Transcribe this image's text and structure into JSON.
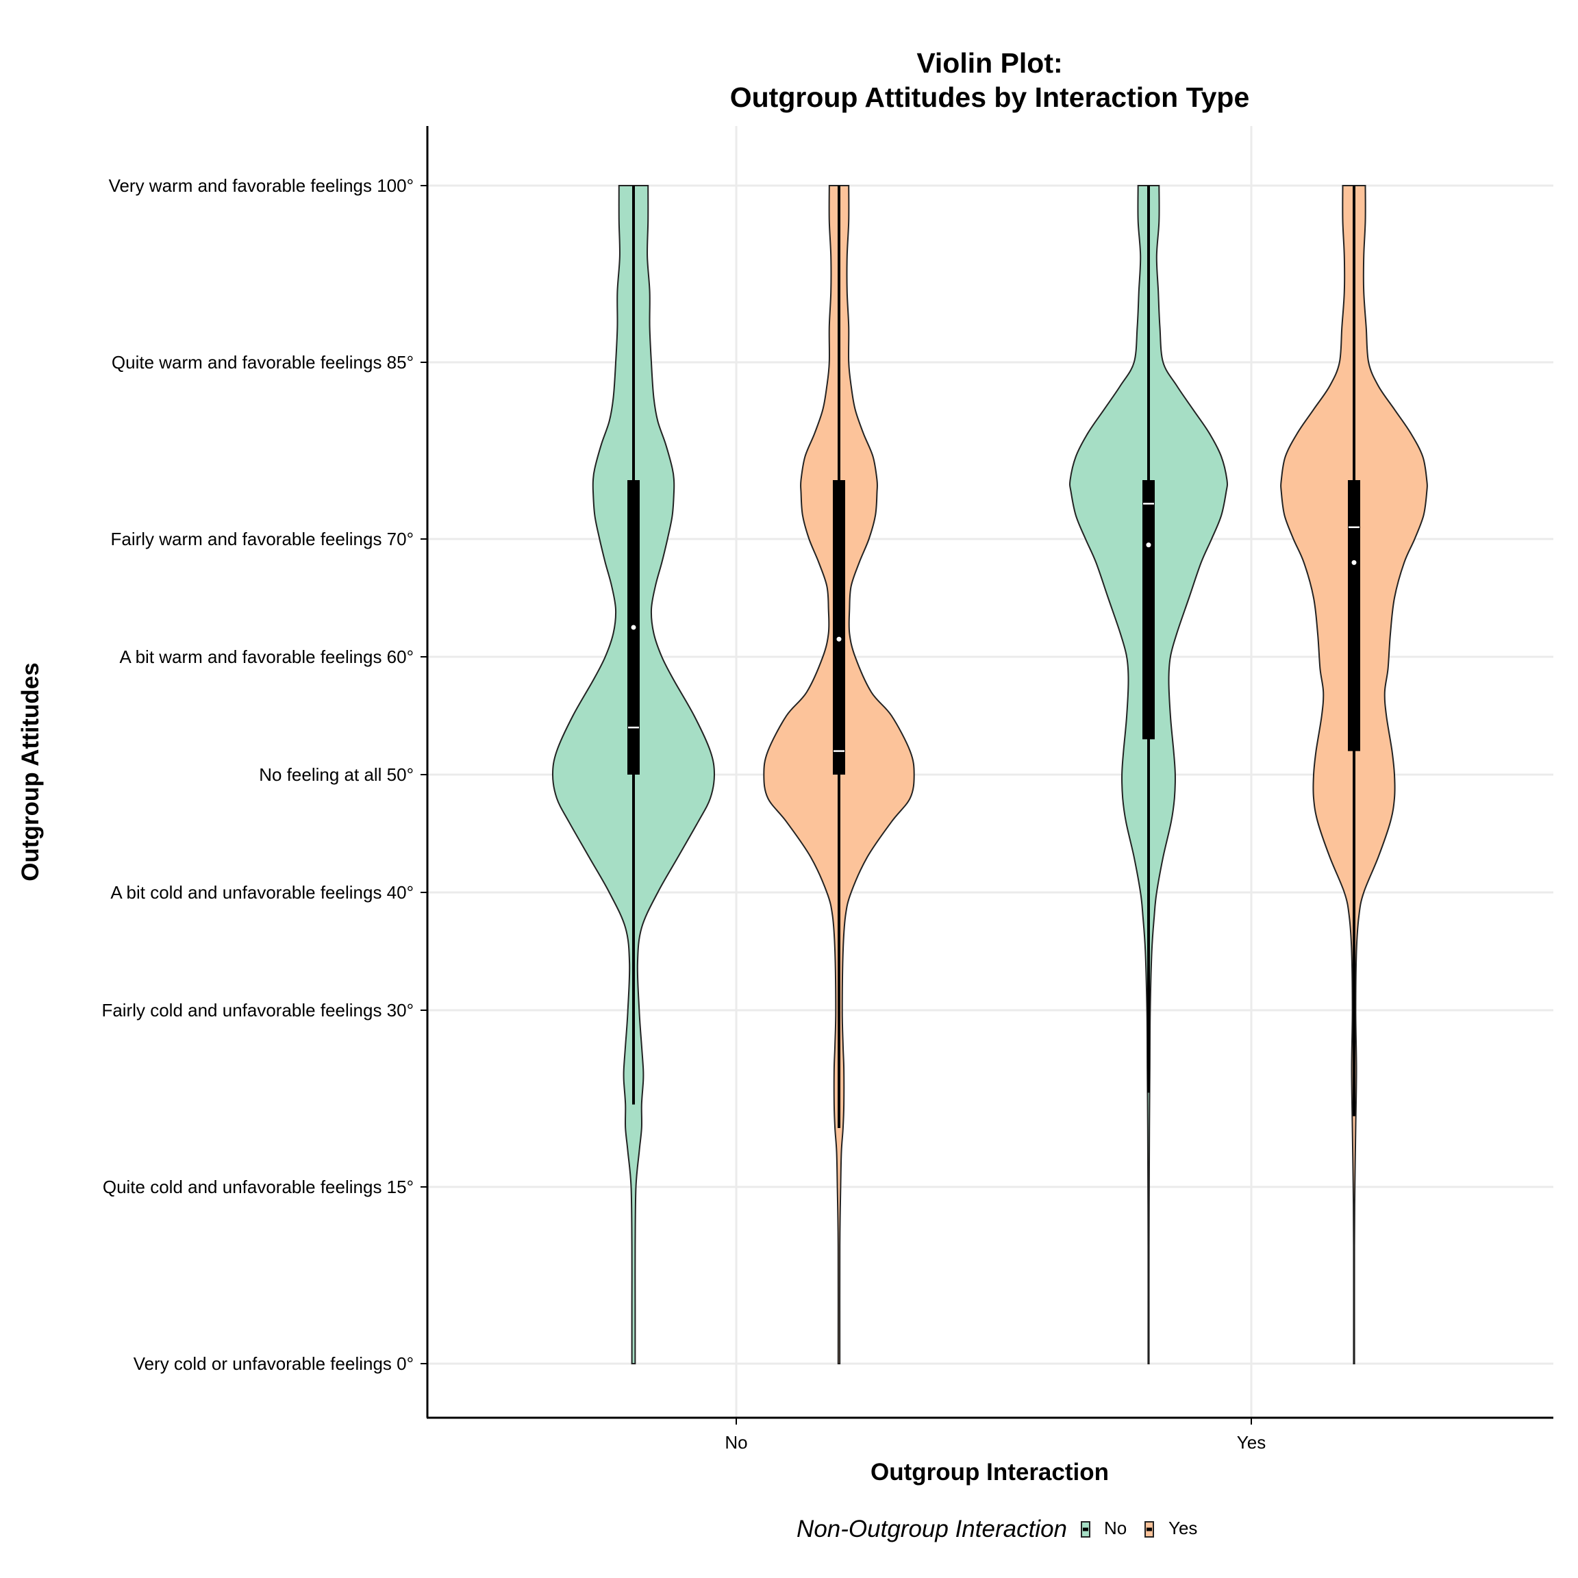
{
  "chart_data": {
    "type": "violin",
    "title": "Violin Plot:",
    "subtitle": "Outgroup Attitudes by Interaction Type",
    "xlabel": "Outgroup Interaction",
    "ylabel": "Outgroup Attitudes",
    "categories": [
      "No",
      "Yes"
    ],
    "ylim": [
      -5,
      105
    ],
    "grid": true,
    "y_ticks": [
      {
        "value": 0,
        "label": "Very cold or unfavorable feelings 0°"
      },
      {
        "value": 15,
        "label": "Quite cold and unfavorable feelings 15°"
      },
      {
        "value": 30,
        "label": "Fairly cold and unfavorable feelings 30°"
      },
      {
        "value": 40,
        "label": "A bit cold and unfavorable feelings 40°"
      },
      {
        "value": 50,
        "label": "No feeling at all 50°"
      },
      {
        "value": 60,
        "label": "A bit warm and favorable feelings 60°"
      },
      {
        "value": 70,
        "label": "Fairly warm and favorable feelings 70°"
      },
      {
        "value": 85,
        "label": "Quite warm and favorable feelings 85°"
      },
      {
        "value": 100,
        "label": "Very warm and favorable feelings 100°"
      }
    ],
    "legend": {
      "title": "Non-Outgroup Interaction",
      "position": "bottom"
    },
    "series": [
      {
        "name": "No",
        "color": "#a6dec5",
        "groups": [
          {
            "category": "No",
            "box": {
              "q1": 50,
              "median": 54,
              "q3": 75,
              "mean": 62.5,
              "whisker_low": 22,
              "whisker_high": 100
            },
            "density": [
              [
                0,
                0.02
              ],
              [
                5,
                0.02
              ],
              [
                10,
                0.02
              ],
              [
                15,
                0.03
              ],
              [
                18,
                0.07
              ],
              [
                20,
                0.1
              ],
              [
                22,
                0.1
              ],
              [
                24,
                0.12
              ],
              [
                25,
                0.12
              ],
              [
                27,
                0.1
              ],
              [
                30,
                0.07
              ],
              [
                34,
                0.05
              ],
              [
                37,
                0.1
              ],
              [
                40,
                0.3
              ],
              [
                43,
                0.55
              ],
              [
                46,
                0.8
              ],
              [
                48,
                0.95
              ],
              [
                50,
                1.0
              ],
              [
                52,
                0.95
              ],
              [
                55,
                0.75
              ],
              [
                58,
                0.5
              ],
              [
                60,
                0.35
              ],
              [
                62,
                0.25
              ],
              [
                64,
                0.22
              ],
              [
                66,
                0.27
              ],
              [
                68,
                0.35
              ],
              [
                70,
                0.42
              ],
              [
                72,
                0.48
              ],
              [
                74,
                0.5
              ],
              [
                75,
                0.5
              ],
              [
                76,
                0.48
              ],
              [
                78,
                0.4
              ],
              [
                80,
                0.3
              ],
              [
                82,
                0.25
              ],
              [
                85,
                0.22
              ],
              [
                88,
                0.2
              ],
              [
                91,
                0.2
              ],
              [
                94,
                0.17
              ],
              [
                97,
                0.18
              ],
              [
                100,
                0.18
              ]
            ]
          },
          {
            "category": "Yes",
            "box": {
              "q1": 53,
              "median": 73,
              "q3": 75,
              "mean": 69.5,
              "whisker_low": 23,
              "whisker_high": 100
            },
            "density": [
              [
                0,
                0.005
              ],
              [
                10,
                0.005
              ],
              [
                20,
                0.01
              ],
              [
                25,
                0.015
              ],
              [
                30,
                0.02
              ],
              [
                35,
                0.04
              ],
              [
                38,
                0.07
              ],
              [
                40,
                0.1
              ],
              [
                43,
                0.18
              ],
              [
                46,
                0.28
              ],
              [
                48,
                0.32
              ],
              [
                50,
                0.33
              ],
              [
                52,
                0.31
              ],
              [
                55,
                0.27
              ],
              [
                58,
                0.25
              ],
              [
                60,
                0.27
              ],
              [
                62,
                0.35
              ],
              [
                65,
                0.5
              ],
              [
                68,
                0.65
              ],
              [
                70,
                0.78
              ],
              [
                72,
                0.9
              ],
              [
                74,
                0.96
              ],
              [
                75,
                0.97
              ],
              [
                77,
                0.9
              ],
              [
                79,
                0.75
              ],
              [
                81,
                0.55
              ],
              [
                83,
                0.35
              ],
              [
                85,
                0.18
              ],
              [
                88,
                0.14
              ],
              [
                91,
                0.12
              ],
              [
                94,
                0.1
              ],
              [
                97,
                0.13
              ],
              [
                100,
                0.13
              ]
            ]
          }
        ]
      },
      {
        "name": "Yes",
        "color": "#fcc39a",
        "groups": [
          {
            "category": "No",
            "box": {
              "q1": 50,
              "median": 52,
              "q3": 75,
              "mean": 61.5,
              "whisker_low": 20,
              "whisker_high": 100
            },
            "density": [
              [
                0,
                0.01
              ],
              [
                10,
                0.01
              ],
              [
                15,
                0.02
              ],
              [
                18,
                0.03
              ],
              [
                20,
                0.05
              ],
              [
                22,
                0.06
              ],
              [
                25,
                0.06
              ],
              [
                27,
                0.05
              ],
              [
                30,
                0.04
              ],
              [
                35,
                0.05
              ],
              [
                38,
                0.08
              ],
              [
                40,
                0.15
              ],
              [
                43,
                0.35
              ],
              [
                46,
                0.65
              ],
              [
                48,
                0.88
              ],
              [
                50,
                0.93
              ],
              [
                52,
                0.88
              ],
              [
                55,
                0.65
              ],
              [
                57,
                0.4
              ],
              [
                60,
                0.2
              ],
              [
                62,
                0.13
              ],
              [
                64,
                0.13
              ],
              [
                66,
                0.15
              ],
              [
                68,
                0.25
              ],
              [
                70,
                0.37
              ],
              [
                72,
                0.45
              ],
              [
                74,
                0.47
              ],
              [
                75,
                0.47
              ],
              [
                77,
                0.42
              ],
              [
                79,
                0.3
              ],
              [
                81,
                0.2
              ],
              [
                83,
                0.15
              ],
              [
                85,
                0.12
              ],
              [
                88,
                0.12
              ],
              [
                91,
                0.1
              ],
              [
                94,
                0.1
              ],
              [
                97,
                0.12
              ],
              [
                100,
                0.12
              ]
            ]
          },
          {
            "category": "Yes",
            "box": {
              "q1": 52,
              "median": 71,
              "q3": 75,
              "mean": 68,
              "whisker_low": 21,
              "whisker_high": 100
            },
            "density": [
              [
                0,
                0.005
              ],
              [
                10,
                0.005
              ],
              [
                15,
                0.01
              ],
              [
                20,
                0.02
              ],
              [
                25,
                0.03
              ],
              [
                30,
                0.02
              ],
              [
                35,
                0.03
              ],
              [
                38,
                0.06
              ],
              [
                40,
                0.12
              ],
              [
                43,
                0.3
              ],
              [
                46,
                0.45
              ],
              [
                48,
                0.5
              ],
              [
                50,
                0.5
              ],
              [
                52,
                0.47
              ],
              [
                55,
                0.4
              ],
              [
                57,
                0.38
              ],
              [
                59,
                0.42
              ],
              [
                62,
                0.45
              ],
              [
                65,
                0.5
              ],
              [
                68,
                0.62
              ],
              [
                70,
                0.75
              ],
              [
                72,
                0.86
              ],
              [
                74,
                0.9
              ],
              [
                75,
                0.9
              ],
              [
                77,
                0.85
              ],
              [
                79,
                0.7
              ],
              [
                81,
                0.5
              ],
              [
                83,
                0.3
              ],
              [
                85,
                0.18
              ],
              [
                88,
                0.15
              ],
              [
                91,
                0.12
              ],
              [
                94,
                0.12
              ],
              [
                97,
                0.14
              ],
              [
                100,
                0.14
              ]
            ]
          }
        ]
      }
    ]
  }
}
